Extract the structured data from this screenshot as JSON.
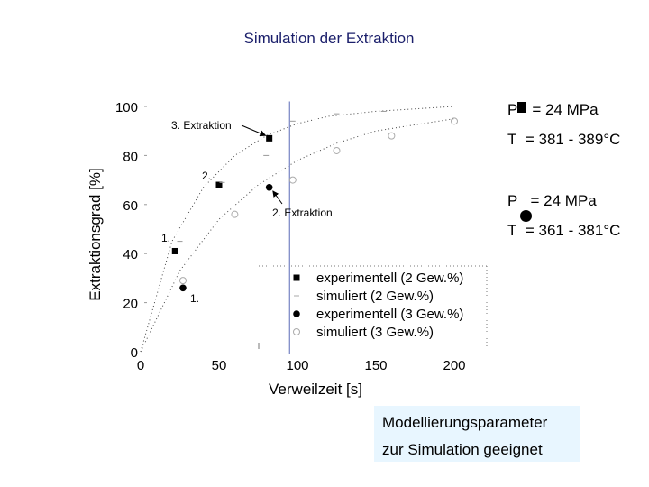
{
  "page": {
    "title": "Simulation der Extraktion"
  },
  "chart_data": {
    "type": "scatter",
    "xlabel": "Verweilzeit [s]",
    "ylabel": "Extraktionsgrad [%]",
    "xlim": [
      0,
      220
    ],
    "ylim": [
      0,
      100
    ],
    "xticks": [
      0,
      50,
      100,
      150,
      200
    ],
    "yticks": [
      0,
      20,
      40,
      60,
      80,
      100
    ],
    "grid": false,
    "legend_position": "bottom-right",
    "vertical_line_x": 95,
    "series": [
      {
        "name": "experimentell (2 Gew.%)",
        "marker": "filled-square",
        "x": [
          22,
          50,
          82
        ],
        "y": [
          41,
          68,
          87
        ]
      },
      {
        "name": "simuliert (2 Gew.%)",
        "marker": "dash",
        "x": [
          25,
          52,
          80,
          97,
          125,
          155
        ],
        "y": [
          45,
          69,
          80,
          94,
          97,
          98
        ]
      },
      {
        "name": "experimentell (3 Gew.%)",
        "marker": "filled-circle",
        "x": [
          27,
          82
        ],
        "y": [
          26,
          67
        ]
      },
      {
        "name": "simuliert (3 Gew.%)",
        "marker": "open-circle",
        "x": [
          27,
          60,
          97,
          125,
          160,
          200
        ],
        "y": [
          29,
          56,
          70,
          82,
          88,
          94
        ]
      }
    ],
    "curves": [
      {
        "series": "simuliert (2 Gew.%)",
        "x": [
          0,
          20,
          40,
          60,
          80,
          100,
          120,
          150,
          200
        ],
        "y": [
          0,
          45,
          67,
          80,
          88,
          93,
          96,
          98,
          100
        ]
      },
      {
        "series": "simuliert (3 Gew.%)",
        "x": [
          0,
          25,
          50,
          75,
          100,
          125,
          150,
          200
        ],
        "y": [
          0,
          33,
          54,
          68,
          78,
          85,
          90,
          95
        ]
      }
    ],
    "annotations": [
      {
        "text": "3. Extraktion",
        "arrow_to": [
          82,
          87
        ]
      },
      {
        "text": "2. Extraktion",
        "arrow_to": [
          82,
          67
        ]
      },
      {
        "text": "2.",
        "near": [
          50,
          68
        ]
      },
      {
        "text": "1.",
        "near": [
          22,
          41
        ]
      },
      {
        "text": "1.",
        "near": [
          27,
          26
        ]
      }
    ]
  },
  "conditions": [
    {
      "marker": "filled-square",
      "p_label": "P",
      "p_value": "= 24 MPa",
      "t_label": "T",
      "t_value": "= 381 - 389°C"
    },
    {
      "marker": "filled-circle",
      "p_label": "P",
      "p_value": "= 24 MPa",
      "t_label": "T",
      "t_value": "= 361 - 381°C"
    }
  ],
  "note": {
    "line1": "Modellierungsparameter",
    "line2": "zur Simulation geeignet",
    "background": "#e8f6ff"
  },
  "colors": {
    "title": "#1b1f6b",
    "vertical_line": "#7f8cc7"
  }
}
